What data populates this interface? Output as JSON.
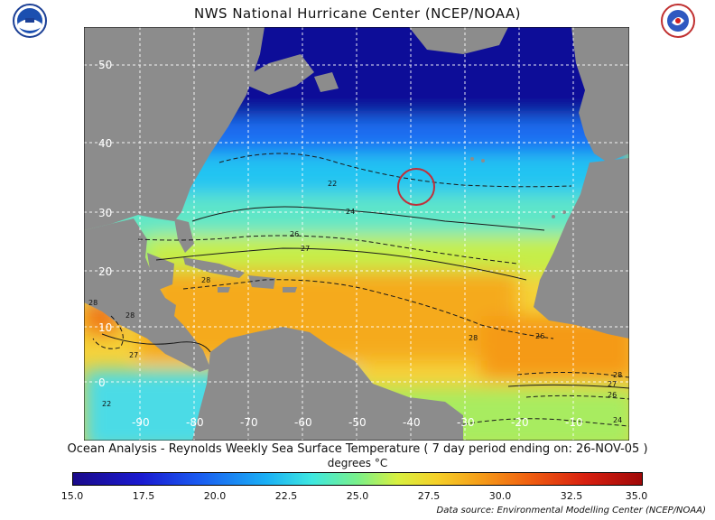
{
  "header": {
    "title": "NWS National Hurricane Center (NCEP/NOAA)",
    "logo_left": "NOAA",
    "logo_right": "NATIONAL WEATHER SERVICE"
  },
  "map": {
    "lat_labels": [
      "50",
      "40",
      "30",
      "20",
      "10",
      "0"
    ],
    "lon_labels": [
      "-90",
      "-80",
      "-70",
      "-60",
      "-50",
      "-40",
      "-30",
      "-20",
      "-10"
    ],
    "contour_labels": [
      "22",
      "24",
      "26",
      "27",
      "28",
      "28",
      "28",
      "28",
      "27",
      "26",
      "24",
      "22",
      "28",
      "26",
      "27"
    ],
    "land_color": "#8c8c8c",
    "marker_color": "#c0303a"
  },
  "caption": {
    "text": "Ocean Analysis - Reynolds Weekly Sea Surface Temperature ( 7 day period ending on: 26-NOV-05 )",
    "units": "degrees °C"
  },
  "colorbar": {
    "ticks": [
      "15.0",
      "17.5",
      "20.0",
      "22.5",
      "25.0",
      "27.5",
      "30.0",
      "32.5",
      "35.0"
    ]
  },
  "footer": {
    "source": "Data source: Environmental Modelling Center (NCEP/NOAA)"
  }
}
